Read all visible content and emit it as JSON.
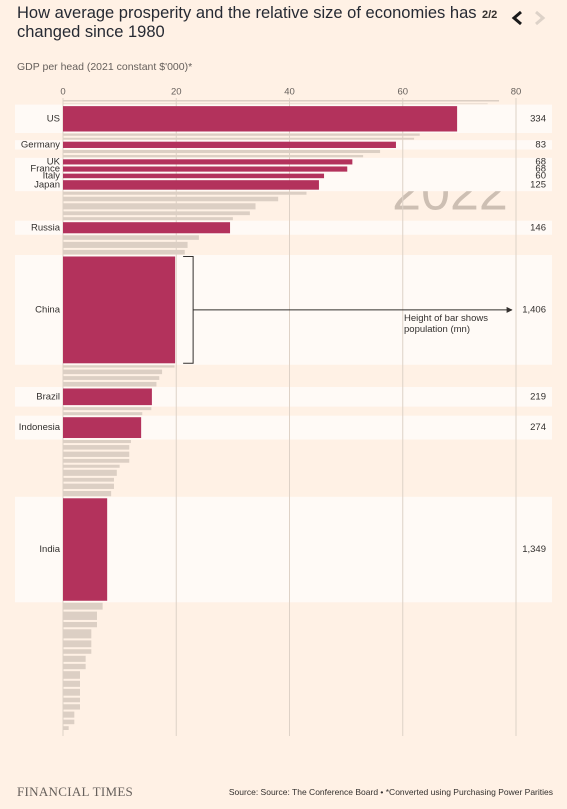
{
  "header": {
    "title": "How average prosperity and the relative size of economies has changed since 1980",
    "pager": "2/2"
  },
  "footer": {
    "brand": "FINANCIAL TIMES",
    "source": "Source: Source: The Conference Board • *Converted using Purchasing Power Parities"
  },
  "chart_data": {
    "type": "variwide-bar",
    "x_label": "GDP per head (2021 constant $'000)*",
    "year": "2022",
    "annotation": "Height of bar shows population (mn)",
    "xlim": [
      0,
      80
    ],
    "xticks": [
      0,
      20,
      40,
      60,
      80
    ],
    "grid": true,
    "highlight_color": "#b3325c",
    "other_color": "#dccfc4",
    "categories": [
      null,
      null,
      "US",
      null,
      null,
      "Germany",
      null,
      null,
      "UK",
      "France",
      "Italy",
      "Japan",
      null,
      null,
      null,
      null,
      null,
      "Russia",
      null,
      null,
      null,
      "China",
      null,
      null,
      null,
      null,
      "Brazil",
      null,
      null,
      "Indonesia",
      null,
      null,
      null,
      null,
      null,
      null,
      null,
      null,
      null,
      "India",
      null,
      null,
      null,
      null,
      null,
      null,
      null,
      null,
      null,
      null,
      null,
      null,
      null,
      null,
      null,
      null
    ],
    "values": [
      77,
      75,
      69.6,
      63,
      62,
      58.8,
      56,
      53,
      51.1,
      50.2,
      46.1,
      45.2,
      43,
      38,
      34,
      33,
      30,
      29.5,
      24,
      22,
      21.5,
      19.8,
      19.7,
      17.5,
      17,
      16.5,
      15.7,
      15.6,
      14,
      13.8,
      12,
      11.7,
      11.7,
      11.7,
      10,
      9.5,
      9,
      9,
      8.5,
      7.8,
      7,
      6,
      6,
      5,
      5,
      5,
      4,
      4,
      3,
      3,
      3,
      3,
      3,
      2,
      2,
      1
    ],
    "population": [
      20,
      8,
      334,
      30,
      25,
      83,
      40,
      30,
      68,
      68,
      60,
      125,
      40,
      60,
      80,
      50,
      40,
      146,
      60,
      80,
      60,
      1406,
      30,
      60,
      50,
      60,
      219,
      40,
      40,
      274,
      40,
      60,
      70,
      50,
      40,
      80,
      50,
      70,
      70,
      1349,
      90,
      110,
      70,
      120,
      90,
      60,
      80,
      70,
      100,
      80,
      90,
      60,
      70,
      80,
      60,
      50
    ],
    "population_labels": [
      null,
      null,
      "334",
      null,
      null,
      "83",
      null,
      null,
      "68",
      "68",
      "60",
      "125",
      null,
      null,
      null,
      null,
      null,
      "146",
      null,
      null,
      null,
      "1,406",
      null,
      null,
      null,
      null,
      "219",
      null,
      null,
      "274",
      null,
      null,
      null,
      null,
      null,
      null,
      null,
      null,
      null,
      "1,349",
      null,
      null,
      null,
      null,
      null,
      null,
      null,
      null,
      null,
      null,
      null,
      null,
      null,
      null,
      null,
      null
    ]
  }
}
